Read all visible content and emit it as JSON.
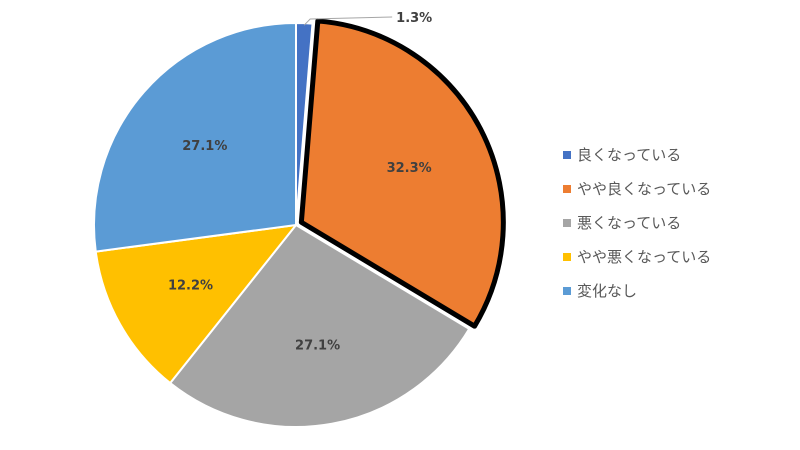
{
  "chart_data": {
    "type": "pie",
    "categories": [
      "良くなっている",
      "やや良くなっている",
      "悪くなっている",
      "やや悪くなっている",
      "変化なし"
    ],
    "values": [
      1.3,
      32.3,
      27.1,
      12.2,
      27.1
    ],
    "data_labels": [
      "1.3%",
      "32.3%",
      "27.1%",
      "12.2%",
      "27.1%"
    ],
    "colors": [
      "#4472C4",
      "#ED7D31",
      "#A5A5A5",
      "#FFC000",
      "#5B9BD5"
    ],
    "highlighted_slice": 1,
    "legend_position": "right",
    "start_angle": "top",
    "direction": "clockwise"
  }
}
